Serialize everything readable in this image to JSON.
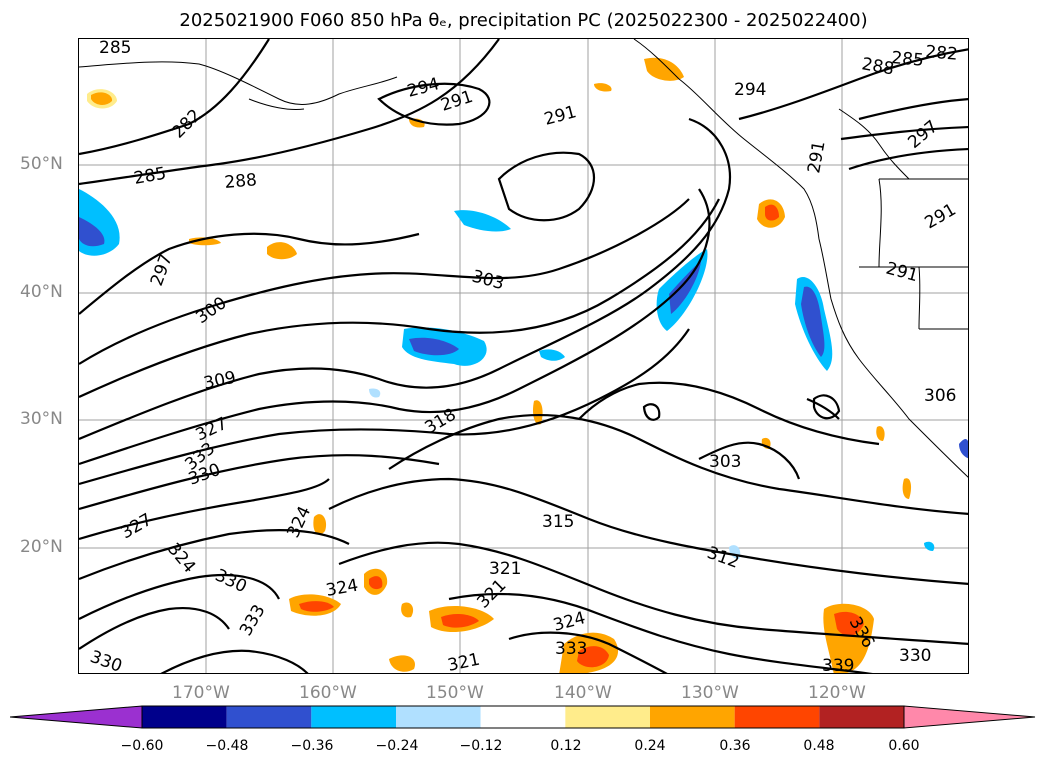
{
  "title": "2025021900 F060 850 hPa θₑ, precipitation PC (2025022300 - 2025022400)",
  "lat_ticks": [
    "50°N",
    "40°N",
    "30°N",
    "20°N"
  ],
  "lon_ticks": [
    "170°W",
    "160°W",
    "150°W",
    "140°W",
    "130°W",
    "120°W"
  ],
  "contour_labels": [
    "285",
    "294",
    "291",
    "282",
    "285",
    "288",
    "291",
    "294",
    "297",
    "291",
    "297",
    "300",
    "303",
    "309",
    "327",
    "333",
    "330",
    "318",
    "303",
    "306",
    "315",
    "312",
    "324",
    "327",
    "324",
    "330",
    "321",
    "321",
    "324",
    "333",
    "330",
    "324",
    "333",
    "321",
    "330",
    "339",
    "336",
    "291",
    "288",
    "285",
    "282",
    "291"
  ],
  "colorbar": {
    "ticks": [
      "−0.60",
      "−0.48",
      "−0.36",
      "−0.24",
      "−0.12",
      "0.12",
      "0.24",
      "0.36",
      "0.48",
      "0.60"
    ],
    "colors": [
      "#9b30d0",
      "#00008b",
      "#3050cf",
      "#00bfff",
      "#b0e0ff",
      "#ffffff",
      "#ffec8b",
      "#ffa500",
      "#ff4500",
      "#b22222",
      "#ff88aa"
    ]
  }
}
